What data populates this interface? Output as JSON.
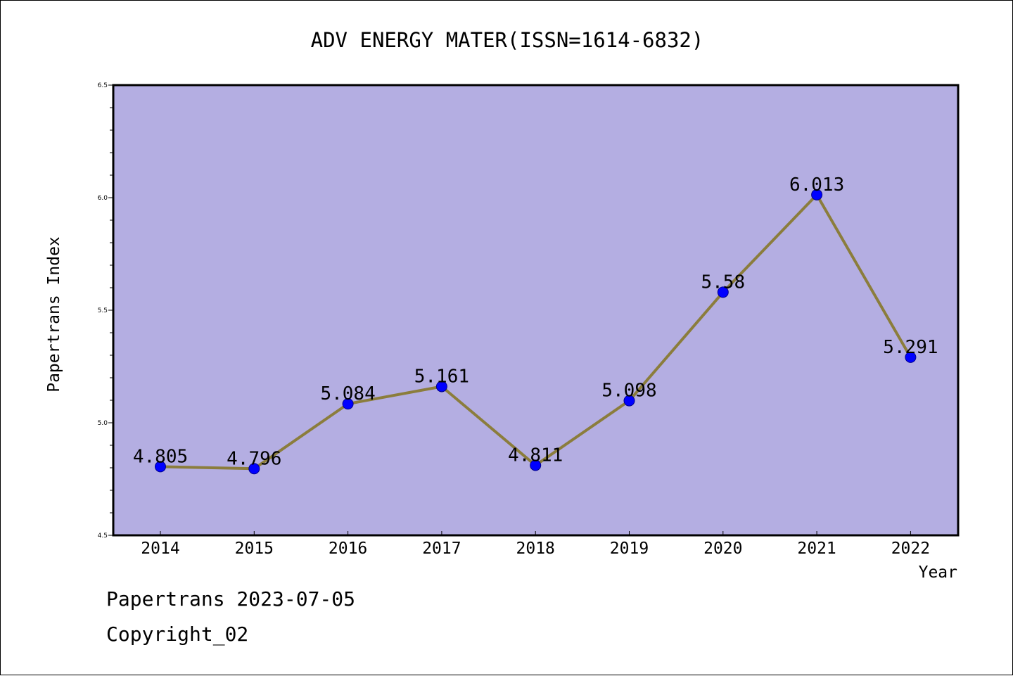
{
  "chart_data": {
    "type": "line",
    "title": "ADV ENERGY MATER(ISSN=1614-6832)",
    "xlabel": "Year",
    "ylabel": "Papertrans Index",
    "categories": [
      "2014",
      "2015",
      "2016",
      "2017",
      "2018",
      "2019",
      "2020",
      "2021",
      "2022"
    ],
    "values": [
      4.805,
      4.796,
      5.084,
      5.161,
      4.811,
      5.098,
      5.58,
      6.013,
      5.291
    ],
    "data_labels": [
      "4.805",
      "4.796",
      "5.084",
      "5.161",
      "4.811",
      "5.098",
      "5.58",
      "6.013",
      "5.291"
    ],
    "ylim": [
      4.5,
      6.5
    ],
    "yticks": [
      "4.5",
      "5.0",
      "5.5",
      "6.0",
      "6.5"
    ],
    "grid": false,
    "legend": "none",
    "colors": {
      "plot_background": "#b4aee2",
      "line": "#8b7d3c",
      "marker": "#0000ff",
      "axes": "#000000"
    }
  },
  "footer": {
    "date_line": "Papertrans 2023-07-05",
    "copyright": "Copyright_02"
  }
}
